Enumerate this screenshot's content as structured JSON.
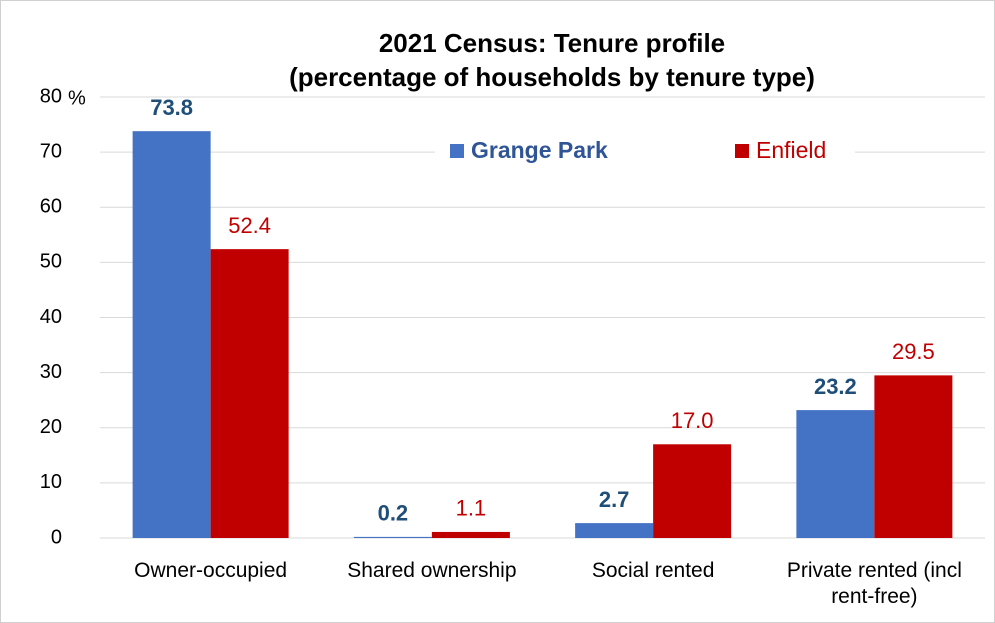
{
  "chart_data": {
    "type": "bar",
    "title": "2021 Census: Tenure profile",
    "subtitle": "(percentage of households by tenure type)",
    "ylabel": "%",
    "categories": [
      "Owner-occupied",
      "Shared ownership",
      "Social rented",
      "Private rented (incl rent-free)"
    ],
    "series": [
      {
        "name": "Grange Park",
        "color": "#4472c4",
        "label_color": "#1f4e79",
        "values": [
          73.8,
          0.2,
          2.7,
          23.2
        ],
        "value_labels": [
          "73.8",
          "0.2",
          "2.7",
          "23.2"
        ]
      },
      {
        "name": "Enfield",
        "color": "#c00000",
        "label_color": "#c00000",
        "values": [
          52.4,
          1.1,
          17.0,
          29.5
        ],
        "value_labels": [
          "52.4",
          "1.1",
          "17.0",
          "29.5"
        ]
      }
    ],
    "ylim": [
      0,
      80
    ],
    "yticks": [
      0,
      10,
      20,
      30,
      40,
      50,
      60,
      70,
      80
    ],
    "grid": true,
    "legend": "top"
  }
}
